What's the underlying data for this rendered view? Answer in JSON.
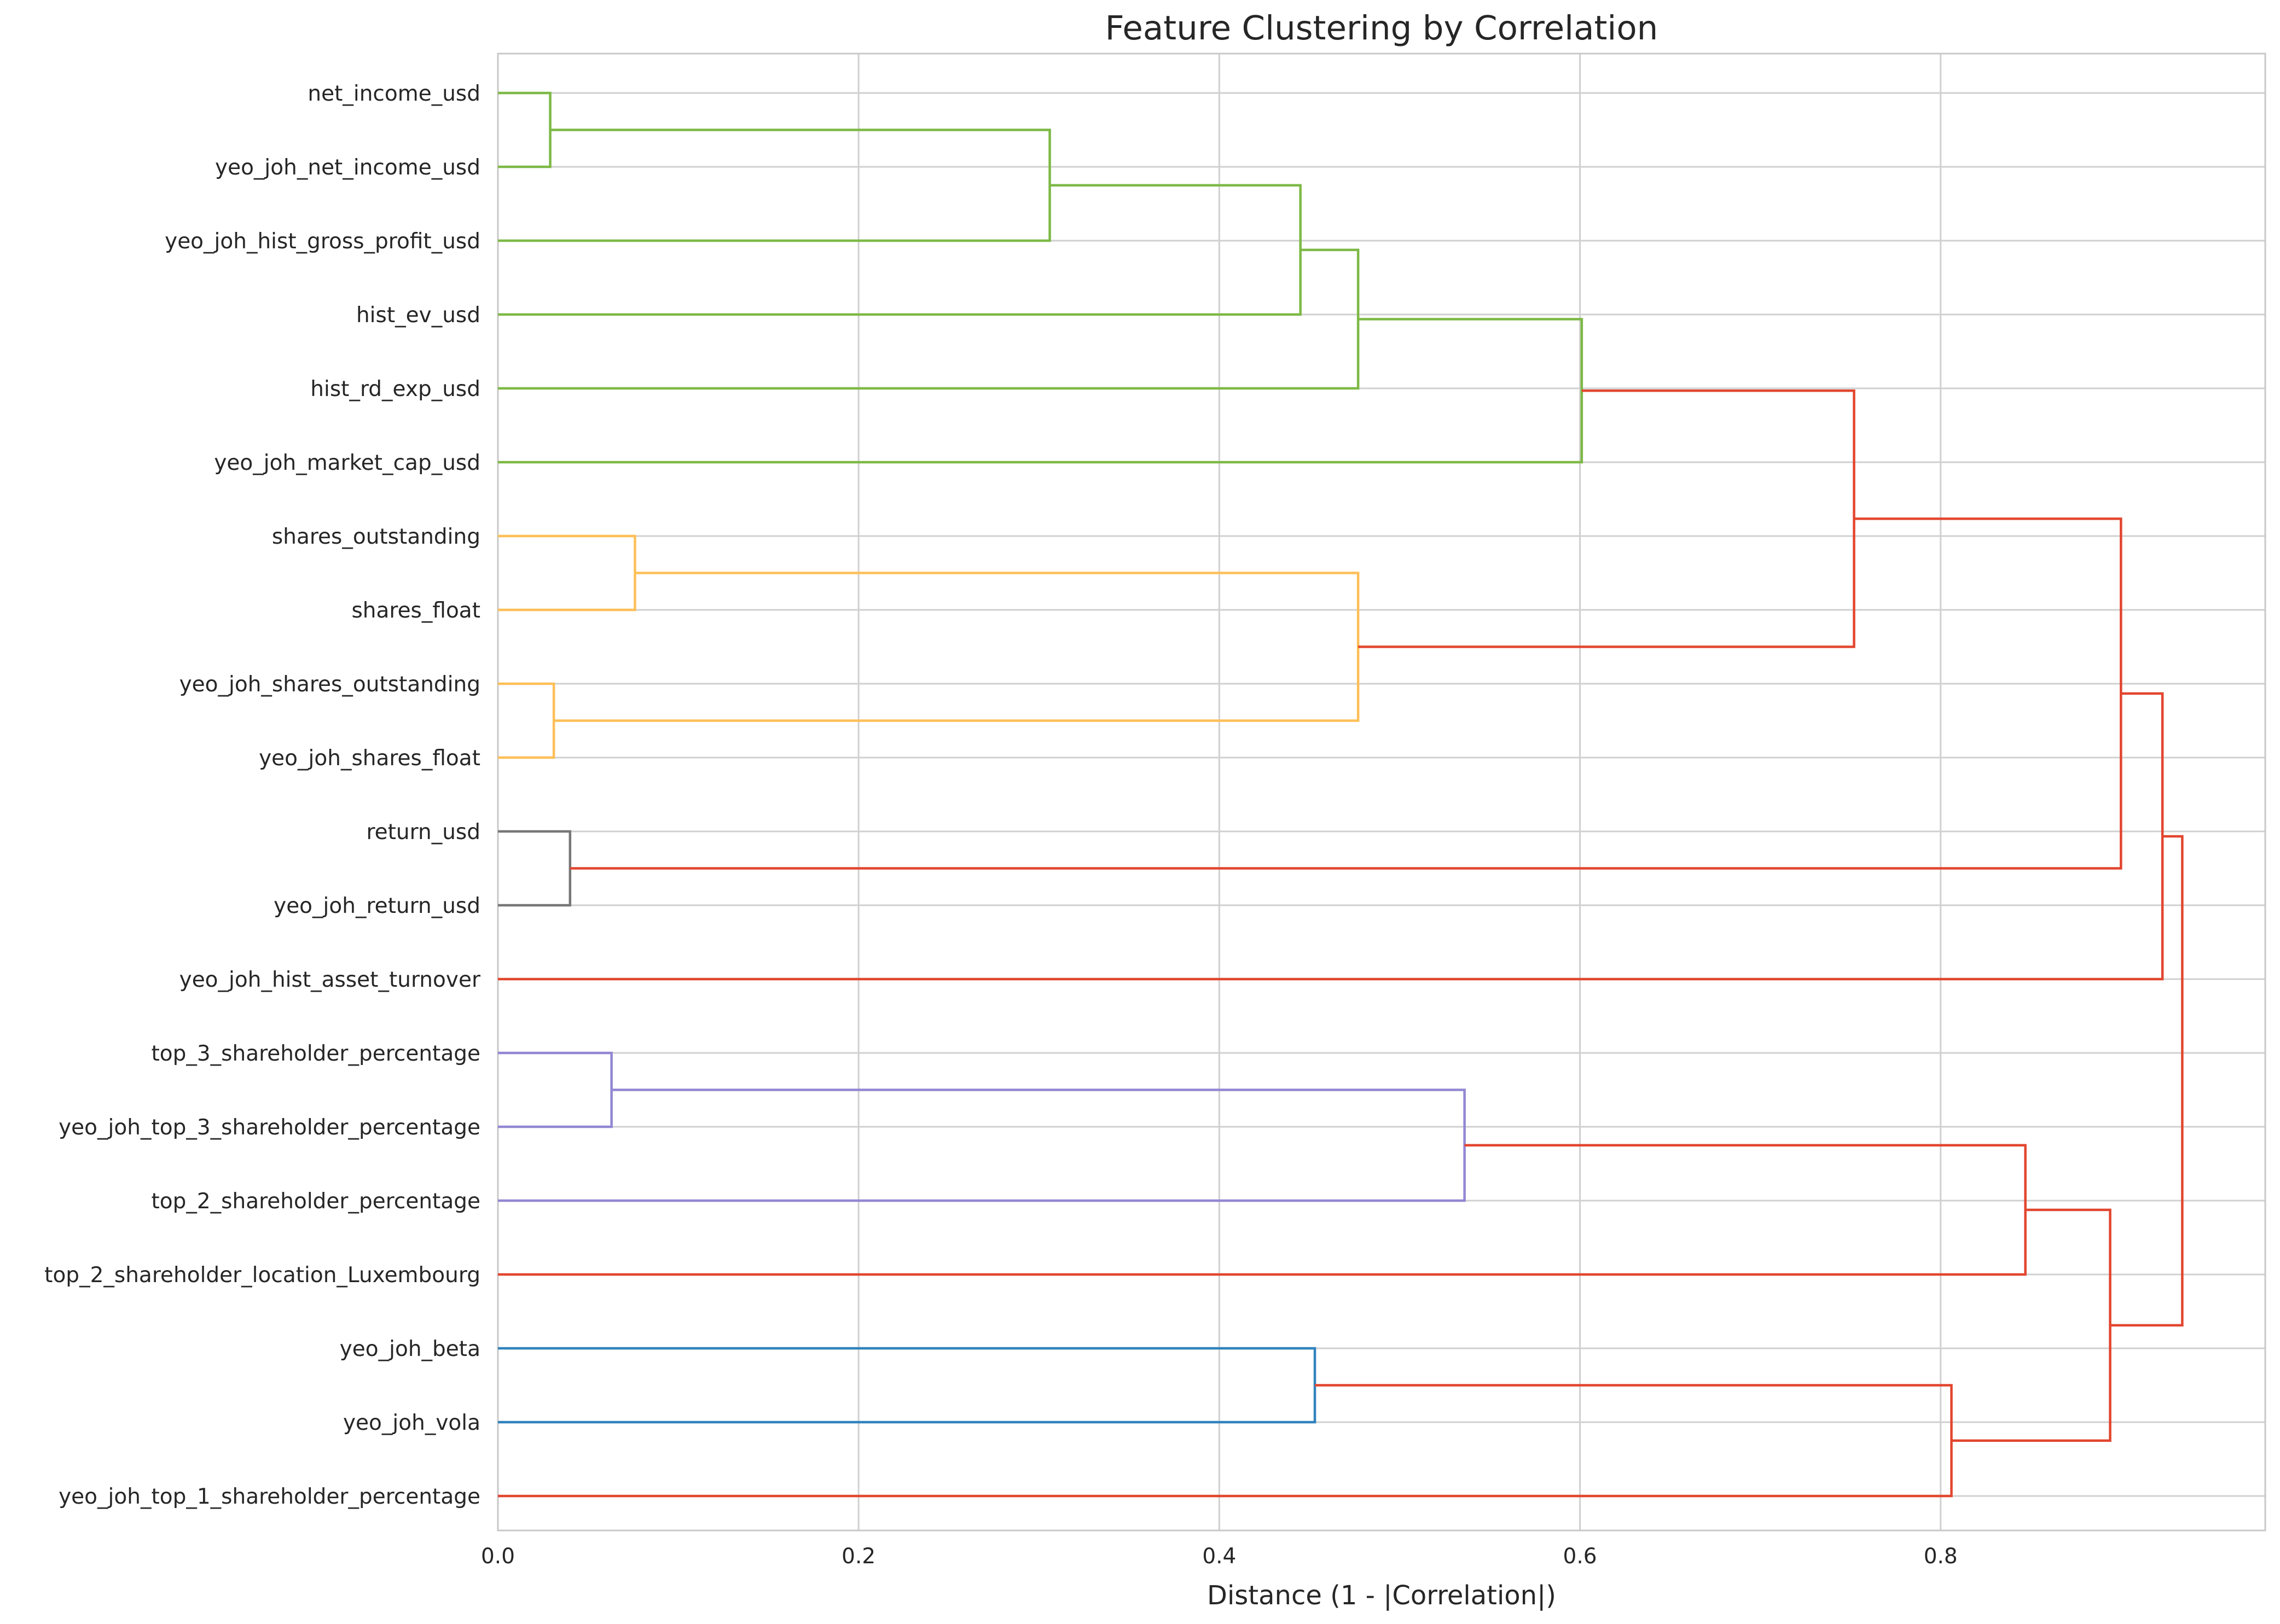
{
  "chart_data": {
    "type": "dendrogram",
    "orientation": "horizontal",
    "title": "Feature Clustering by Correlation",
    "xlabel": "Distance (1 - |Correlation|)",
    "ylabel": "",
    "xlim": [
      0,
      0.98
    ],
    "xticks": [
      "0.0",
      "0.2",
      "0.4",
      "0.6",
      "0.8"
    ],
    "xtick_values": [
      0,
      0.2,
      0.4,
      0.6,
      0.8
    ],
    "grid": true,
    "legend": "none",
    "leaves": [
      "net_income_usd",
      "yeo_joh_net_income_usd",
      "yeo_joh_hist_gross_profit_usd",
      "hist_ev_usd",
      "hist_rd_exp_usd",
      "yeo_joh_market_cap_usd",
      "shares_outstanding",
      "shares_float",
      "yeo_joh_shares_outstanding",
      "yeo_joh_shares_float",
      "return_usd",
      "yeo_joh_return_usd",
      "yeo_joh_hist_asset_turnover",
      "top_3_shareholder_percentage",
      "yeo_joh_top_3_shareholder_percentage",
      "top_2_shareholder_percentage",
      "top_2_shareholder_location_Luxembourg",
      "yeo_joh_beta",
      "yeo_joh_vola",
      "yeo_joh_top_1_shareholder_percentage"
    ],
    "merges": [
      {
        "id": "A",
        "children": [
          "net_income_usd",
          "yeo_joh_net_income_usd"
        ],
        "distance": 0.029,
        "color": "#7db946"
      },
      {
        "id": "B",
        "children": [
          "A",
          "yeo_joh_hist_gross_profit_usd"
        ],
        "distance": 0.306,
        "color": "#7db946"
      },
      {
        "id": "C",
        "children": [
          "B",
          "hist_ev_usd"
        ],
        "distance": 0.445,
        "color": "#7db946"
      },
      {
        "id": "D",
        "children": [
          "C",
          "hist_rd_exp_usd"
        ],
        "distance": 0.477,
        "color": "#7db946"
      },
      {
        "id": "E",
        "children": [
          "D",
          "yeo_joh_market_cap_usd"
        ],
        "distance": 0.601,
        "color": "#7db946"
      },
      {
        "id": "F",
        "children": [
          "shares_outstanding",
          "shares_float"
        ],
        "distance": 0.076,
        "color": "#fdbf58"
      },
      {
        "id": "G",
        "children": [
          "yeo_joh_shares_outstanding",
          "yeo_joh_shares_float"
        ],
        "distance": 0.031,
        "color": "#fdbf58"
      },
      {
        "id": "H",
        "children": [
          "F",
          "G"
        ],
        "distance": 0.477,
        "color": "#fdbf58"
      },
      {
        "id": "I",
        "children": [
          "E",
          "H"
        ],
        "distance": 0.752,
        "color": "#e2462f"
      },
      {
        "id": "J",
        "children": [
          "return_usd",
          "yeo_joh_return_usd"
        ],
        "distance": 0.04,
        "color": "#777777"
      },
      {
        "id": "K",
        "children": [
          "I",
          "J"
        ],
        "distance": 0.9,
        "color": "#e2462f"
      },
      {
        "id": "L",
        "children": [
          "K",
          "yeo_joh_hist_asset_turnover"
        ],
        "distance": 0.923,
        "color": "#e2462f"
      },
      {
        "id": "M",
        "children": [
          "top_3_shareholder_percentage",
          "yeo_joh_top_3_shareholder_percentage"
        ],
        "distance": 0.063,
        "color": "#9187d3"
      },
      {
        "id": "N",
        "children": [
          "M",
          "top_2_shareholder_percentage"
        ],
        "distance": 0.536,
        "color": "#9187d3"
      },
      {
        "id": "O",
        "children": [
          "N",
          "top_2_shareholder_location_Luxembourg"
        ],
        "distance": 0.847,
        "color": "#e2462f"
      },
      {
        "id": "P",
        "children": [
          "yeo_joh_beta",
          "yeo_joh_vola"
        ],
        "distance": 0.453,
        "color": "#3182bd"
      },
      {
        "id": "Q",
        "children": [
          "P",
          "yeo_joh_top_1_shareholder_percentage"
        ],
        "distance": 0.806,
        "color": "#e2462f"
      },
      {
        "id": "R",
        "children": [
          "O",
          "Q"
        ],
        "distance": 0.894,
        "color": "#e2462f"
      },
      {
        "id": "S",
        "children": [
          "L",
          "R"
        ],
        "distance": 0.934,
        "color": "#e2462f"
      }
    ],
    "colors": {
      "green_cluster": "#7db946",
      "orange_cluster": "#fdbf58",
      "gray_cluster": "#777777",
      "purple_cluster": "#9187d3",
      "blue_cluster": "#3182bd",
      "link_above_threshold": "#e2462f",
      "grid": "#d0d0d0",
      "axes_edge": "#c8c8c8"
    }
  }
}
